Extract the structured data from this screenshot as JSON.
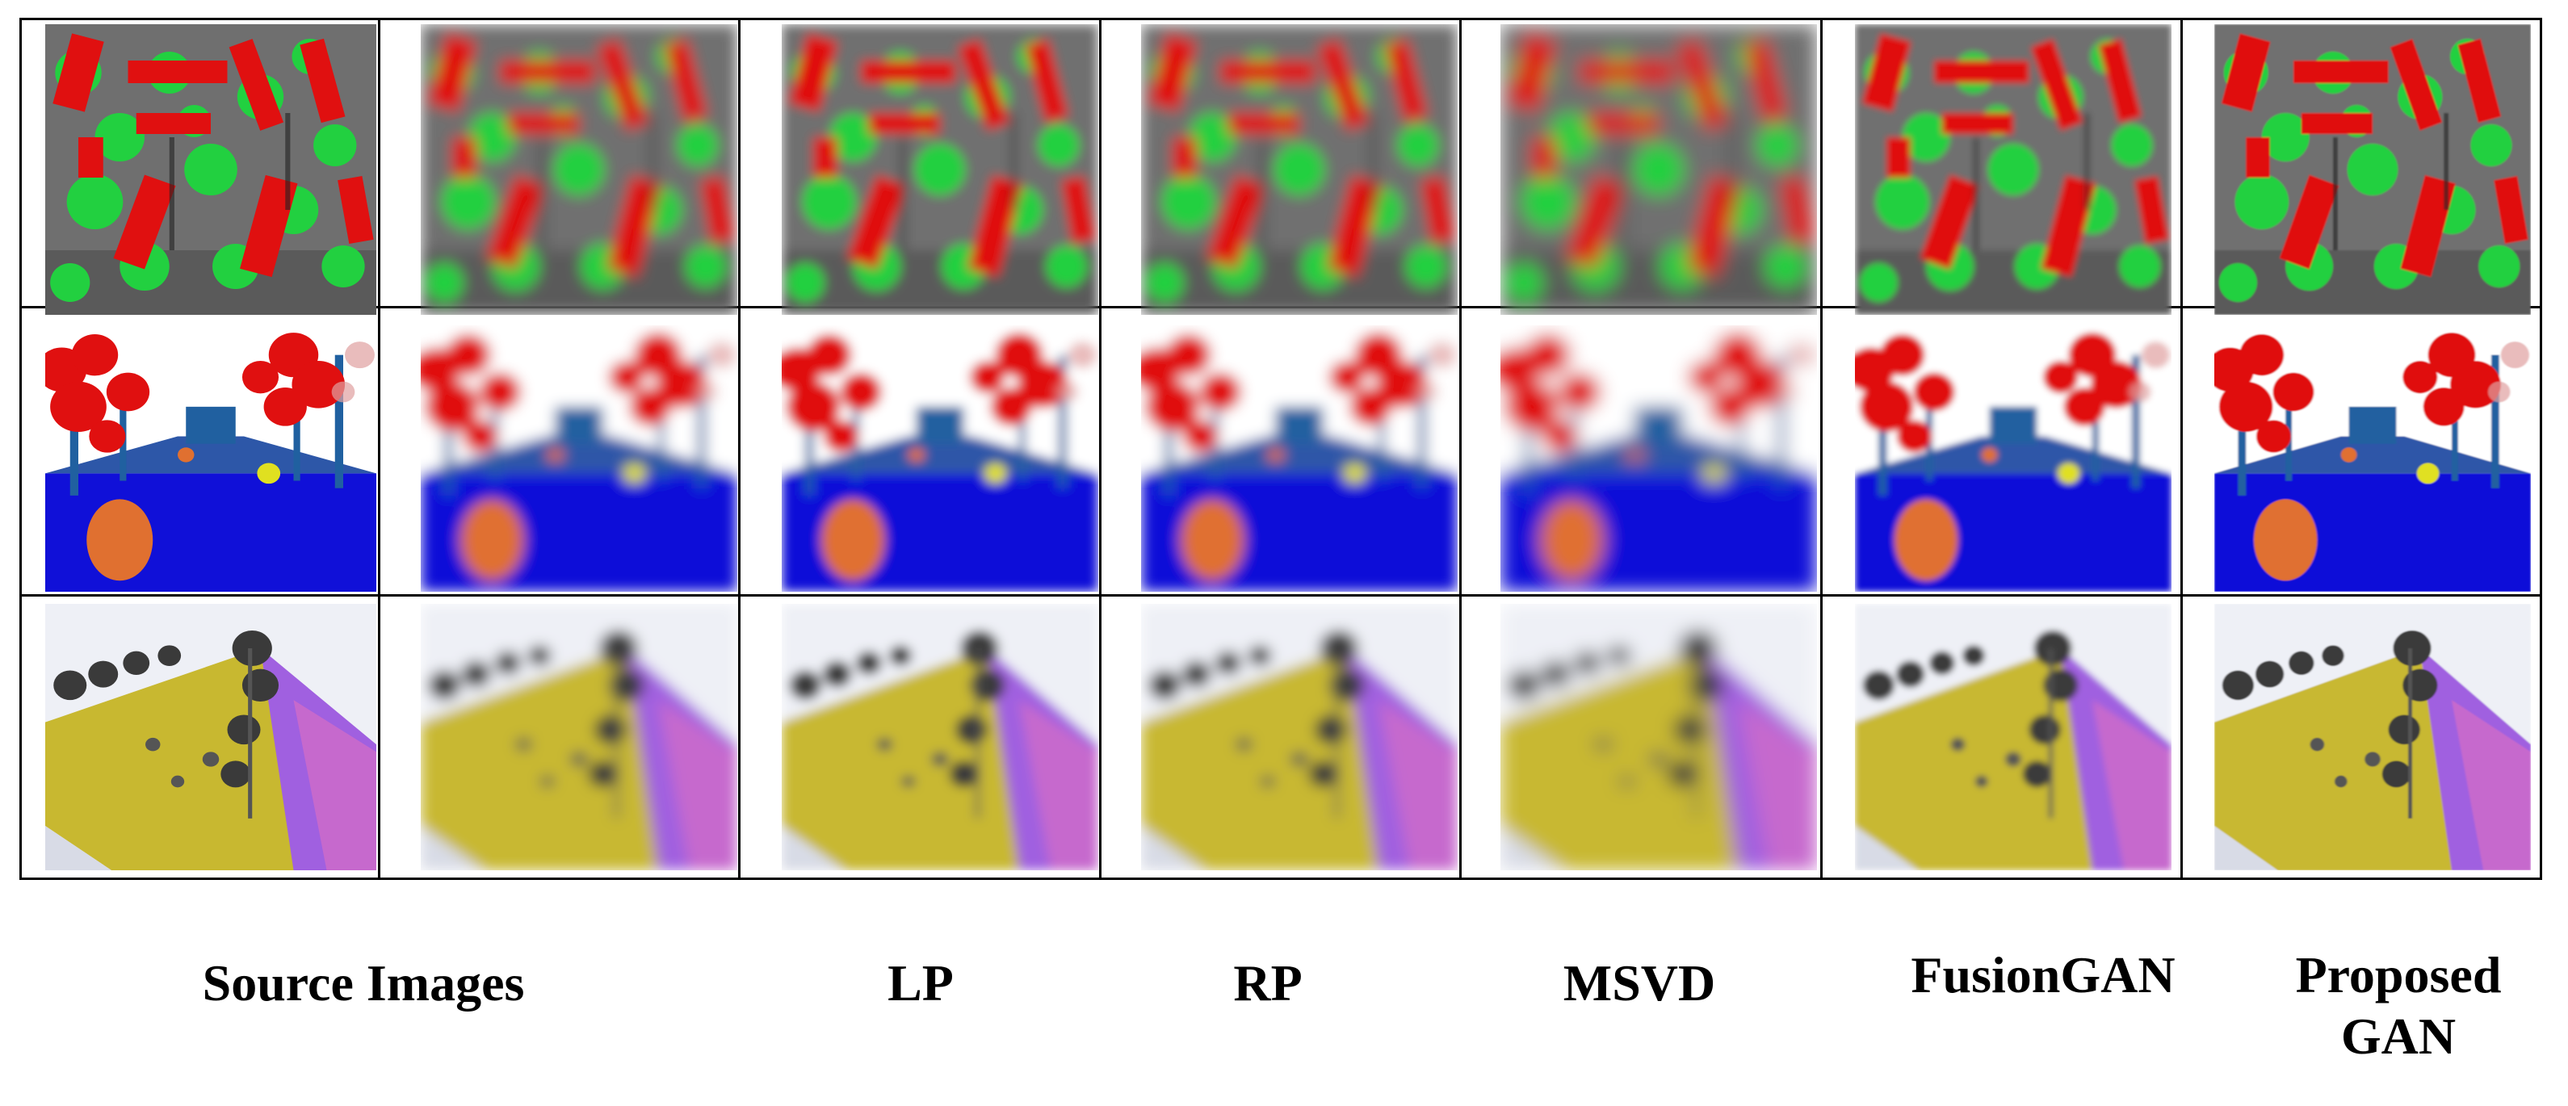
{
  "figure": {
    "columns": [
      "Source Images",
      "LP",
      "RP",
      "MSVD",
      "FusionGAN",
      "Proposed GAN"
    ],
    "rows": [
      {
        "scene": "aerial-urban-buildings-trees",
        "colors": {
          "ground": "#6f6f6f",
          "building": "#e01010",
          "tree": "#22d040"
        }
      },
      {
        "scene": "street-view-trees-road",
        "colors": {
          "sky": "#ffffff",
          "tree": "#e01010",
          "road": "#1010d8",
          "pole": "#2060a0",
          "car": "#e07030"
        }
      },
      {
        "scene": "hillside-terrain-trees",
        "colors": {
          "sky": "#eef0f6",
          "terrain": "#c8b830",
          "slope": "#a060e0",
          "tree": "#3a3a3a"
        }
      }
    ]
  },
  "labels": {
    "source": "Source Images",
    "lp": "LP",
    "rp": "RP",
    "msvd": "MSVD",
    "fusiongan": "FusionGAN",
    "proposed_line1": "Proposed",
    "proposed_line2": "GAN"
  }
}
